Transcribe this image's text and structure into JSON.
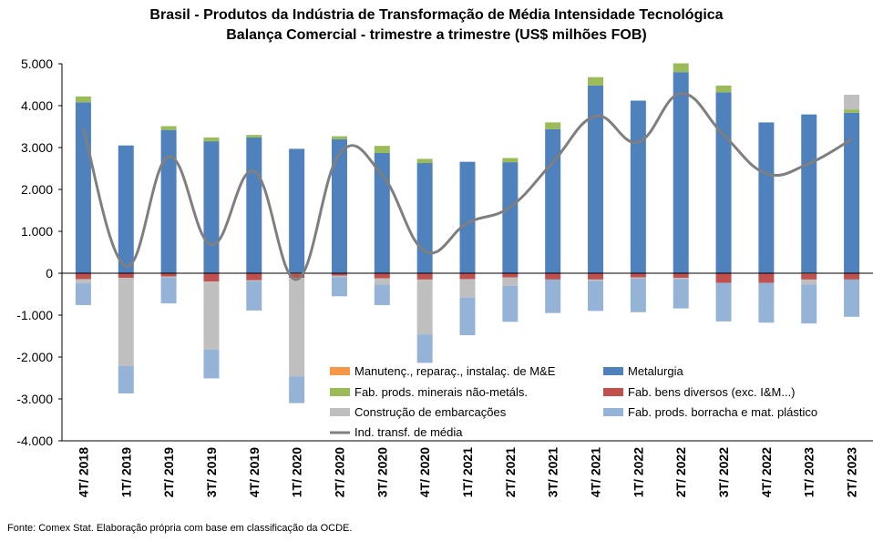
{
  "title_line1": "Brasil - Produtos da Indústria de Transformação de Média Intensidade Tecnológica",
  "title_line2": "Balança Comercial - trimestre a trimestre (US$ milhões FOB)",
  "source": "Fonte: Comex Stat. Elaboração própria com base em classificação da OCDE.",
  "chart_data": {
    "type": "bar",
    "stacked": true,
    "title": "Brasil - Produtos da Indústria de Transformação de Média Intensidade Tecnológica / Balança Comercial - trimestre a trimestre (US$ milhões FOB)",
    "categories": [
      "4T/ 2018",
      "1T/ 2019",
      "2T/ 2019",
      "3T/ 2019",
      "4T/ 2019",
      "1T/ 2020",
      "2T/ 2020",
      "3T/ 2020",
      "4T/ 2020",
      "1T/ 2021",
      "2T/ 2021",
      "3T/ 2021",
      "4T/ 2021",
      "1T/ 2022",
      "2T/ 2022",
      "3T/ 2022",
      "4T/ 2022",
      "1T/ 2023",
      "2T/ 2023"
    ],
    "ylim": [
      -4000,
      5000
    ],
    "yticks": [
      "5.000",
      "4.000",
      "3.000",
      "2.000",
      "1.000",
      "0",
      "-1.000",
      "-2.000",
      "-3.000",
      "-4.000"
    ],
    "ytick_values": [
      5000,
      4000,
      3000,
      2000,
      1000,
      0,
      -1000,
      -2000,
      -3000,
      -4000
    ],
    "grid": false,
    "legend_position": "bottom-right inside plot",
    "series": [
      {
        "name": "Manutenç., reparaç., instalaç. de M&E",
        "color": "#f79646",
        "kind": "bar",
        "values": [
          0,
          0,
          0,
          0,
          0,
          -20,
          0,
          0,
          0,
          0,
          0,
          0,
          0,
          0,
          0,
          0,
          0,
          -20,
          0
        ]
      },
      {
        "name": "Metalurgia",
        "color": "#4f81bd",
        "kind": "bar",
        "values": [
          4080,
          3050,
          3420,
          3150,
          3240,
          2970,
          3200,
          2870,
          2630,
          2660,
          2650,
          3440,
          4480,
          4120,
          4800,
          4320,
          3600,
          3790,
          3830
        ]
      },
      {
        "name": "Fab. prods. minerais não-metáls.",
        "color": "#9bbb59",
        "kind": "bar",
        "values": [
          140,
          0,
          90,
          90,
          60,
          0,
          70,
          170,
          100,
          0,
          100,
          160,
          200,
          0,
          210,
          160,
          0,
          0,
          80
        ]
      },
      {
        "name": "Fab. bens diversos (exc. I&M...)",
        "color": "#c0504d",
        "kind": "bar",
        "values": [
          -140,
          -110,
          -80,
          -200,
          -170,
          -90,
          -60,
          -120,
          -150,
          -140,
          -100,
          -150,
          -150,
          -100,
          -110,
          -230,
          -230,
          -130,
          -150
        ]
      },
      {
        "name": "Construção de embarcações",
        "color": "#bfbfbf",
        "kind": "bar",
        "values": [
          -100,
          -2100,
          -20,
          -1620,
          -20,
          -2350,
          -30,
          -150,
          -1310,
          -440,
          -200,
          0,
          -30,
          -30,
          -30,
          0,
          0,
          -120,
          350
        ]
      },
      {
        "name": "Fab. prods. borracha e mat. plástico",
        "color": "#95b3d7",
        "kind": "bar",
        "values": [
          -520,
          -660,
          -620,
          -690,
          -700,
          -640,
          -460,
          -490,
          -680,
          -900,
          -860,
          -800,
          -720,
          -800,
          -700,
          -920,
          -950,
          -930,
          -890
        ]
      },
      {
        "name": "Ind. transf. de média",
        "color": "#7f7f7f",
        "kind": "line",
        "values": [
          3450,
          170,
          2780,
          680,
          2430,
          -150,
          2850,
          2350,
          530,
          1200,
          1580,
          2650,
          3750,
          3130,
          4290,
          3300,
          2380,
          2620,
          3200
        ]
      }
    ]
  }
}
